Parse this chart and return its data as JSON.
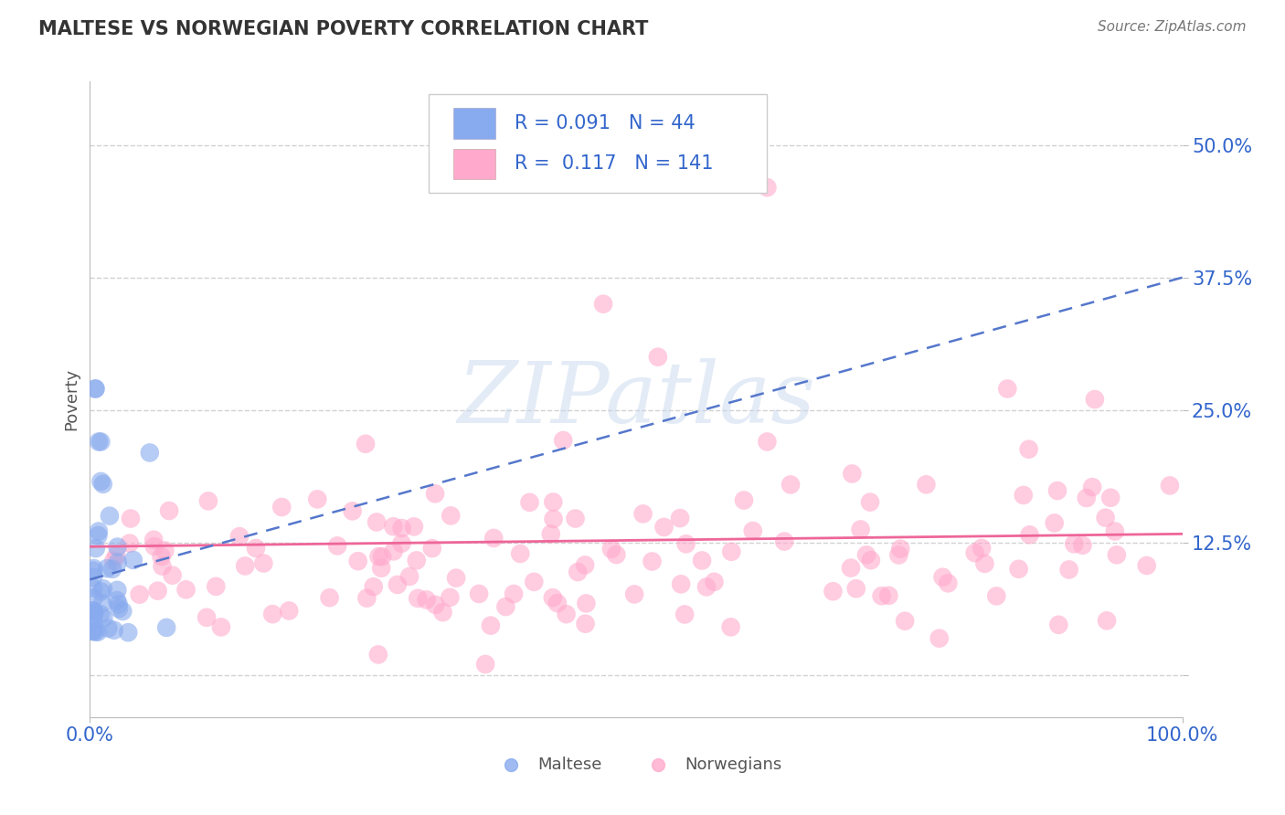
{
  "title": "MALTESE VS NORWEGIAN POVERTY CORRELATION CHART",
  "source": "Source: ZipAtlas.com",
  "ylabel": "Poverty",
  "ytick_vals": [
    0.0,
    0.125,
    0.25,
    0.375,
    0.5
  ],
  "ytick_labels": [
    "",
    "12.5%",
    "25.0%",
    "37.5%",
    "50.0%"
  ],
  "xtick_vals": [
    0.0,
    1.0
  ],
  "xtick_labels": [
    "0.0%",
    "100.0%"
  ],
  "xlim": [
    0.0,
    1.0
  ],
  "ylim": [
    -0.04,
    0.56
  ],
  "maltese_color": "#88aaee",
  "norwegian_color": "#ffaacc",
  "maltese_line_color": "#5577cc",
  "norwegian_line_color": "#ee6699",
  "maltese_R": 0.091,
  "maltese_N": 44,
  "norwegian_R": 0.117,
  "norwegian_N": 141,
  "legend_maltese": "Maltese",
  "legend_norwegian": "Norwegians",
  "grid_color": "#cccccc",
  "bg_color": "#ffffff",
  "tick_color": "#3366cc",
  "label_color": "#555555",
  "title_color": "#333333",
  "nor_line_y0": 0.121,
  "nor_line_y1": 0.133,
  "mal_line_y0": 0.09,
  "mal_line_y1": 0.375,
  "dot_size": 220
}
